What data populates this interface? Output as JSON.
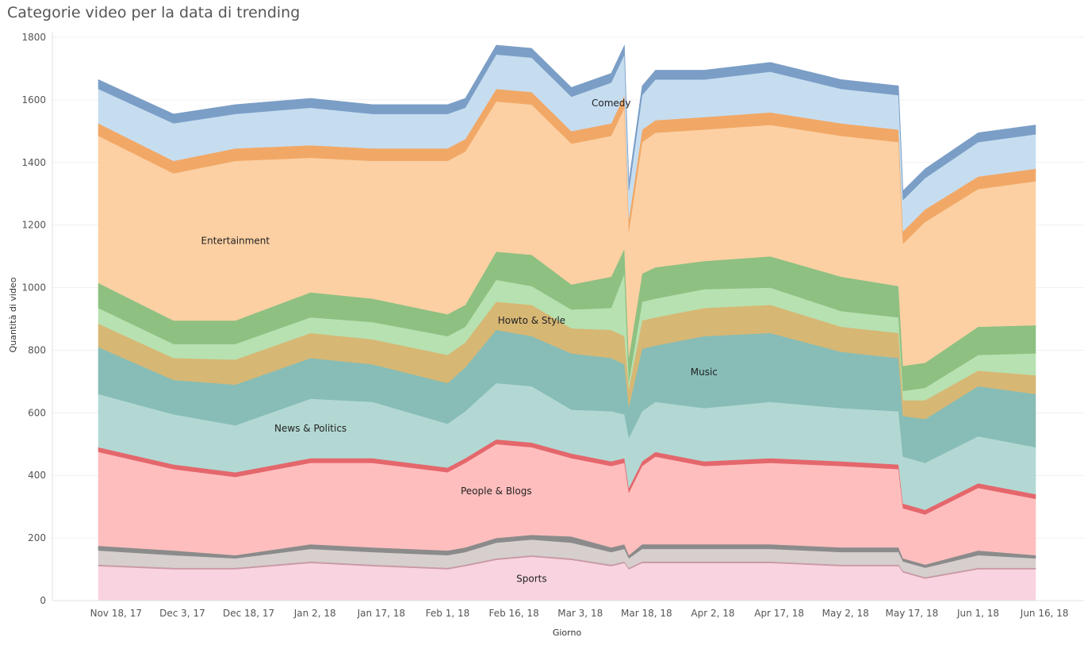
{
  "title": "Categorie video per la data di trending",
  "chart_data": {
    "type": "area",
    "stacked": true,
    "xlabel": "Giorno",
    "ylabel": "Quantità di video",
    "ylim": [
      0,
      1800
    ],
    "yticks": [
      0,
      200,
      400,
      600,
      800,
      1000,
      1200,
      1400,
      1600,
      1800
    ],
    "xtick_labels": [
      "Nov 18, 17",
      "Dec 3, 17",
      "Dec 18, 17",
      "Jan 2, 18",
      "Jan 17, 18",
      "Feb 1, 18",
      "Feb 16, 18",
      "Mar 3, 18",
      "Mar 18, 18",
      "Apr 2, 18",
      "Apr 17, 18",
      "May 2, 18",
      "May 17, 18",
      "Jun 1, 18",
      "Jun 16, 18"
    ],
    "grid": true,
    "x": [
      "2017-11-14",
      "2017-12-01",
      "2017-12-15",
      "2018-01-01",
      "2018-01-15",
      "2018-02-01",
      "2018-02-05",
      "2018-02-12",
      "2018-02-20",
      "2018-03-01",
      "2018-03-10",
      "2018-03-13",
      "2018-03-14",
      "2018-03-17",
      "2018-03-20",
      "2018-03-31",
      "2018-04-15",
      "2018-05-01",
      "2018-05-14",
      "2018-05-15",
      "2018-05-20",
      "2018-06-01",
      "2018-06-14"
    ],
    "series": [
      {
        "name": "Sports",
        "color": "#f9d4e0",
        "values": [
          110,
          100,
          100,
          120,
          110,
          100,
          110,
          130,
          140,
          130,
          110,
          120,
          100,
          120,
          120,
          120,
          120,
          110,
          110,
          90,
          70,
          100,
          100
        ]
      },
      {
        "name": "",
        "color": "#c99aa6",
        "values": [
          5,
          5,
          5,
          5,
          5,
          5,
          5,
          5,
          5,
          5,
          5,
          5,
          5,
          5,
          5,
          5,
          5,
          5,
          5,
          5,
          5,
          5,
          5
        ]
      },
      {
        "name": "",
        "color": "#d6cfcd",
        "values": [
          45,
          40,
          30,
          40,
          40,
          40,
          40,
          50,
          50,
          50,
          40,
          40,
          30,
          40,
          40,
          40,
          40,
          40,
          40,
          30,
          30,
          40,
          30
        ]
      },
      {
        "name": "",
        "color": "#8b8b8b",
        "values": [
          15,
          15,
          10,
          15,
          15,
          15,
          15,
          15,
          15,
          20,
          15,
          15,
          10,
          15,
          15,
          15,
          15,
          15,
          15,
          10,
          10,
          15,
          10
        ]
      },
      {
        "name": "People & Blogs",
        "color": "#ffbebe",
        "values": [
          300,
          260,
          250,
          260,
          270,
          250,
          270,
          300,
          280,
          250,
          260,
          260,
          200,
          250,
          280,
          250,
          260,
          260,
          250,
          160,
          160,
          200,
          180
        ]
      },
      {
        "name": "",
        "color": "#e4676c",
        "values": [
          15,
          15,
          15,
          15,
          15,
          15,
          15,
          15,
          15,
          15,
          15,
          15,
          15,
          15,
          15,
          15,
          15,
          15,
          15,
          15,
          15,
          15,
          15
        ]
      },
      {
        "name": "News & Politics",
        "color": "#b3d8d3",
        "values": [
          170,
          160,
          150,
          190,
          180,
          140,
          150,
          180,
          180,
          140,
          160,
          140,
          160,
          160,
          160,
          170,
          180,
          170,
          170,
          150,
          150,
          150,
          150
        ]
      },
      {
        "name": "Music",
        "color": "#87bdb6",
        "values": [
          150,
          110,
          130,
          130,
          120,
          130,
          140,
          170,
          160,
          180,
          170,
          160,
          100,
          200,
          180,
          230,
          220,
          180,
          170,
          130,
          140,
          160,
          170
        ]
      },
      {
        "name": "Howto & Style",
        "color": "#d7b774",
        "values": [
          75,
          70,
          80,
          80,
          80,
          90,
          80,
          90,
          100,
          80,
          90,
          90,
          60,
          90,
          90,
          90,
          90,
          80,
          80,
          50,
          60,
          50,
          60
        ]
      },
      {
        "name": "",
        "color": "#b7e1b0",
        "values": [
          50,
          45,
          50,
          50,
          55,
          60,
          50,
          70,
          60,
          60,
          70,
          200,
          20,
          60,
          60,
          60,
          55,
          50,
          50,
          30,
          40,
          50,
          70
        ]
      },
      {
        "name": "",
        "color": "#8ec082",
        "values": [
          80,
          75,
          75,
          80,
          75,
          70,
          70,
          90,
          100,
          80,
          100,
          80,
          80,
          90,
          100,
          90,
          100,
          110,
          100,
          80,
          80,
          90,
          90
        ]
      },
      {
        "name": "Entertainment",
        "color": "#fcd0a3",
        "values": [
          470,
          470,
          510,
          430,
          440,
          490,
          490,
          480,
          480,
          450,
          450,
          450,
          400,
          420,
          430,
          420,
          420,
          450,
          460,
          390,
          450,
          440,
          460
        ]
      },
      {
        "name": "",
        "color": "#f1a866",
        "values": [
          40,
          40,
          40,
          40,
          40,
          40,
          40,
          40,
          40,
          40,
          40,
          40,
          40,
          40,
          40,
          40,
          40,
          40,
          40,
          40,
          40,
          40,
          40
        ]
      },
      {
        "name": "Comedy",
        "color": "#c6ddf0",
        "values": [
          110,
          120,
          110,
          120,
          110,
          110,
          100,
          110,
          110,
          110,
          130,
          130,
          90,
          110,
          130,
          120,
          130,
          110,
          110,
          100,
          100,
          110,
          110
        ]
      },
      {
        "name": "",
        "color": "#7b9ec6",
        "values": [
          30,
          30,
          30,
          30,
          30,
          30,
          30,
          30,
          30,
          30,
          30,
          30,
          30,
          30,
          30,
          30,
          30,
          30,
          30,
          30,
          30,
          30,
          30
        ]
      }
    ]
  }
}
